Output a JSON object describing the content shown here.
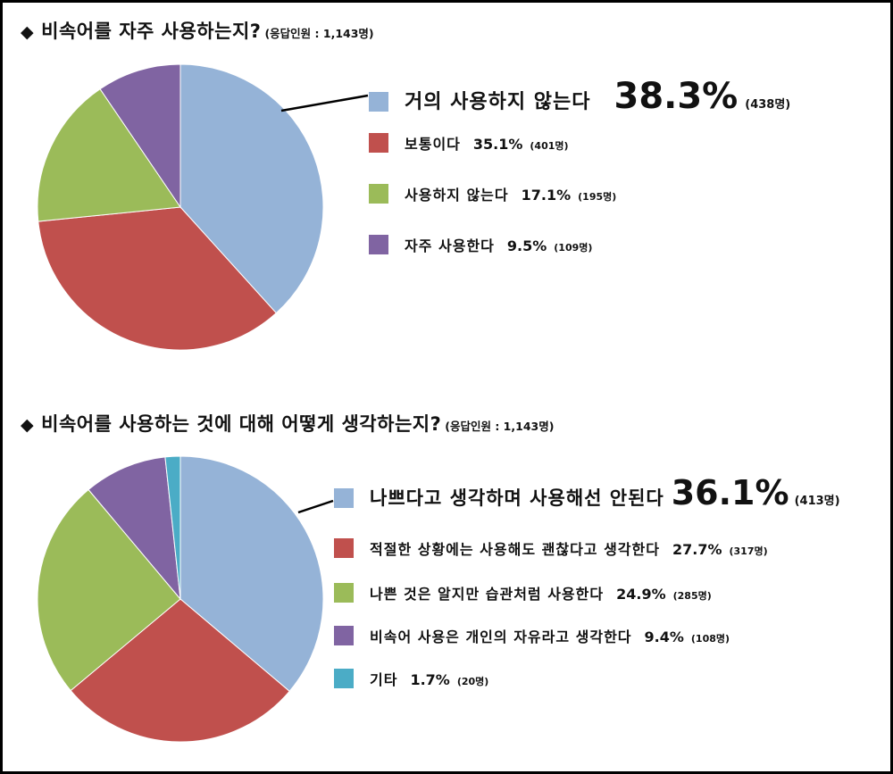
{
  "charts": [
    {
      "heading": "비속어를 자주 사용하는지?",
      "respondents": "(응답인원 : 1,143명)",
      "chart_data": {
        "type": "pie",
        "slices": [
          {
            "label": "거의 사용하지 않는다",
            "value": 38.3,
            "pct": "38.3%",
            "count": "(438명)",
            "color": "#95B3D7"
          },
          {
            "label": "보통이다",
            "value": 35.1,
            "pct": "35.1%",
            "count": "(401명)",
            "color": "#C0504D"
          },
          {
            "label": "사용하지 않는다",
            "value": 17.1,
            "pct": "17.1%",
            "count": "(195명)",
            "color": "#9BBB59"
          },
          {
            "label": "자주 사용한다",
            "value": 9.5,
            "pct": "9.5%",
            "count": "(109명)",
            "color": "#8064A2"
          }
        ]
      }
    },
    {
      "heading": "비속어를 사용하는 것에 대해 어떻게 생각하는지?",
      "respondents": "(응답인원 : 1,143명)",
      "chart_data": {
        "type": "pie",
        "slices": [
          {
            "label": "나쁘다고 생각하며 사용해선 안된다",
            "value": 36.1,
            "pct": "36.1%",
            "count": "(413명)",
            "color": "#95B3D7"
          },
          {
            "label": "적절한 상황에는 사용해도 괜찮다고 생각한다",
            "value": 27.7,
            "pct": "27.7%",
            "count": "(317명)",
            "color": "#C0504D"
          },
          {
            "label": "나쁜 것은 알지만 습관처럼 사용한다",
            "value": 24.9,
            "pct": "24.9%",
            "count": "(285명)",
            "color": "#9BBB59"
          },
          {
            "label": "비속어 사용은 개인의 자유라고 생각한다",
            "value": 9.4,
            "pct": "9.4%",
            "count": "(108명)",
            "color": "#8064A2"
          },
          {
            "label": "기타",
            "value": 1.7,
            "pct": "1.7%",
            "count": "(20명)",
            "color": "#4BACC6"
          }
        ]
      }
    }
  ]
}
